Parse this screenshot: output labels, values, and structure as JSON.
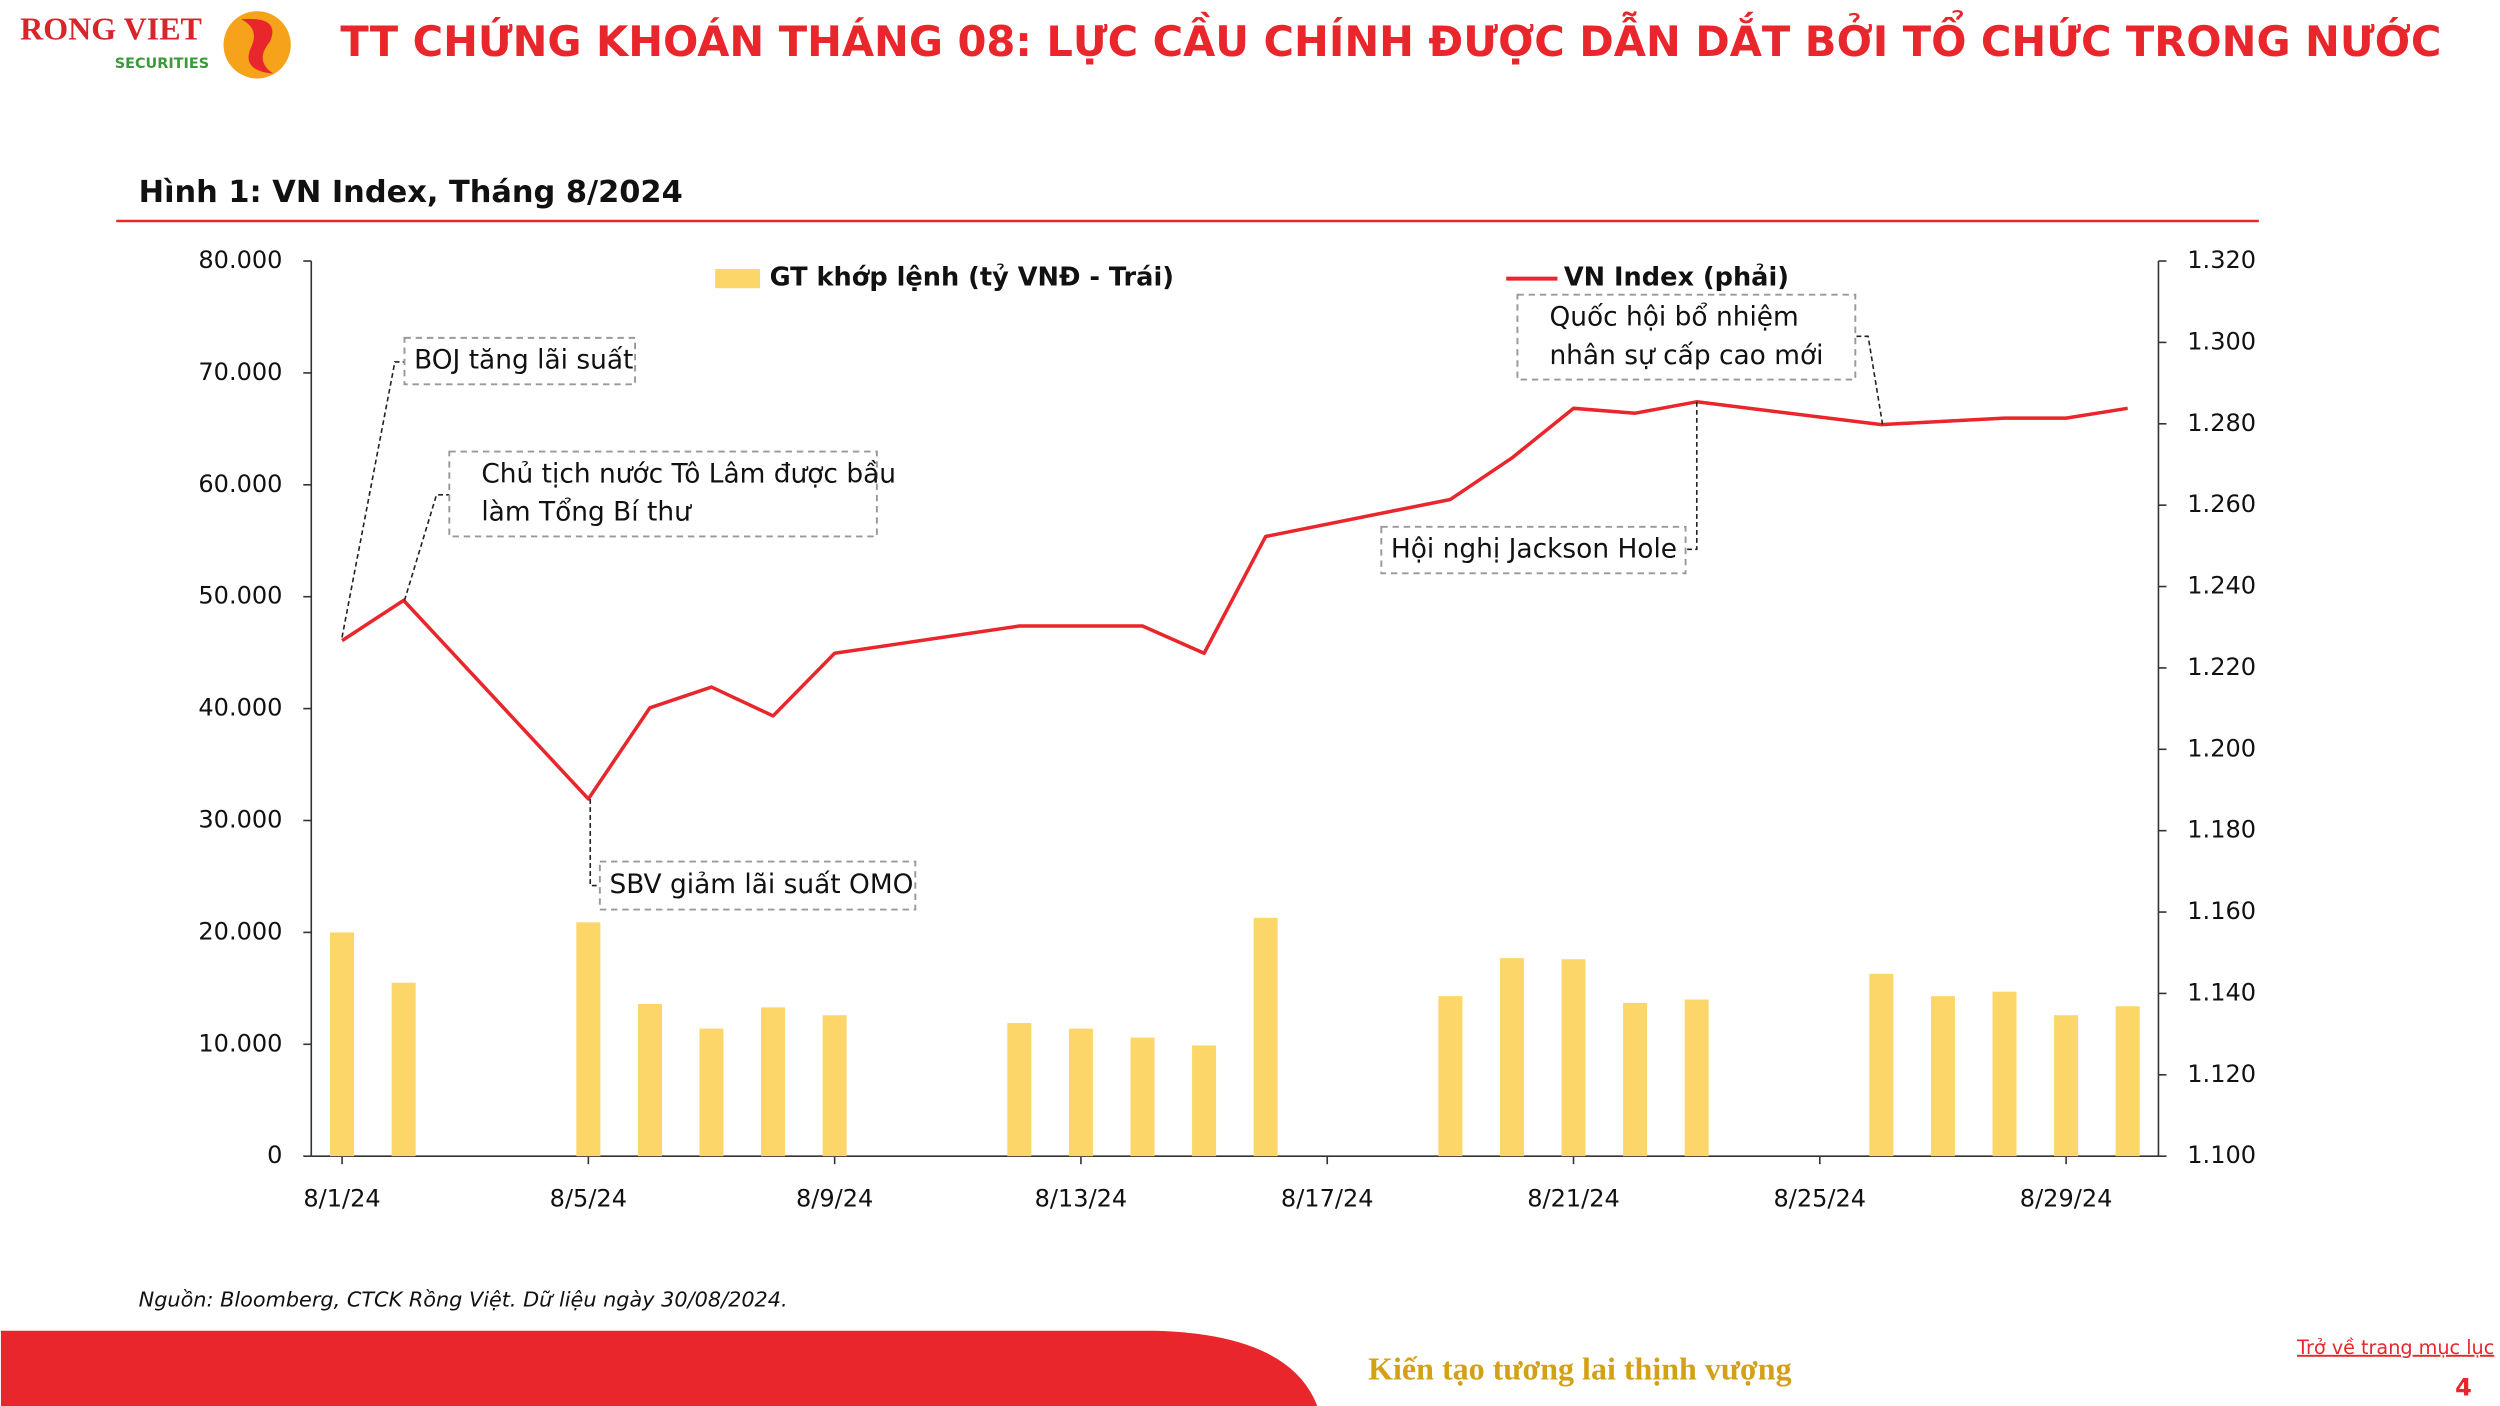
{
  "header": {
    "logo_name": "RONG VIET",
    "logo_sub": "SECURITIES",
    "title": "TT CHỨNG KHOÁN THÁNG 08: LỰC CẦU CHÍNH ĐƯỢC DẪN DẮT BỞI TỔ CHỨC TRONG NƯỚC"
  },
  "chart_data": {
    "type": "bar",
    "title": "Hình 1: VN Index, Tháng 8/2024",
    "categories": [
      "8/1/24",
      null,
      null,
      null,
      "8/5/24",
      null,
      null,
      null,
      "8/9/24",
      null,
      null,
      null,
      "8/13/24",
      null,
      null,
      null,
      "8/17/24",
      null,
      null,
      null,
      "8/21/24",
      null,
      null,
      null,
      "8/25/24",
      null,
      null,
      null,
      "8/29/24",
      null
    ],
    "series": [
      {
        "name": "GT khớp lệnh (tỷ VNĐ - Trái)",
        "type": "bar",
        "color": "#fcd669",
        "values": [
          20000,
          15500,
          null,
          null,
          20900,
          13600,
          11400,
          13300,
          12600,
          null,
          null,
          11900,
          11400,
          10600,
          9900,
          21300,
          null,
          null,
          14300,
          17700,
          17600,
          13700,
          14000,
          null,
          null,
          16300,
          14300,
          14700,
          12600,
          13400
        ]
      },
      {
        "name": "VN Index (phải)",
        "type": "line",
        "axis": "y2",
        "color": "#e8262b",
        "values": [
          1226.7,
          1236.6,
          null,
          null,
          1187.8,
          1210.2,
          1215.3,
          1208.2,
          1223.6,
          null,
          null,
          1230.3,
          1230.3,
          1230.3,
          1223.6,
          1252.3,
          null,
          null,
          1261.4,
          1271.6,
          1283.8,
          1282.6,
          1285.4,
          null,
          null,
          1279.8,
          1280.6,
          1281.4,
          1281.4,
          1283.8
        ]
      }
    ],
    "ylim": [
      0,
      80000
    ],
    "yticks": [
      0,
      {
        "value": 10000,
        "label": "10.000"
      },
      {
        "value": 20000,
        "label": "20.000"
      },
      {
        "value": 30000,
        "label": "30.000"
      },
      {
        "value": 40000,
        "label": "40.000"
      },
      {
        "value": 50000,
        "label": "50.000"
      },
      {
        "value": 60000,
        "label": "60.000"
      },
      {
        "value": 70000,
        "label": "70.000"
      },
      {
        "value": 80000,
        "label": "80.000"
      }
    ],
    "y2lim": [
      1100,
      1320
    ],
    "y2ticks": [
      {
        "value": 1100,
        "label": "1.100"
      },
      {
        "value": 1120,
        "label": "1.120"
      },
      {
        "value": 1140,
        "label": "1.140"
      },
      {
        "value": 1160,
        "label": "1.160"
      },
      {
        "value": 1180,
        "label": "1.180"
      },
      {
        "value": 1200,
        "label": "1.200"
      },
      {
        "value": 1220,
        "label": "1.220"
      },
      {
        "value": 1240,
        "label": "1.240"
      },
      {
        "value": 1260,
        "label": "1.260"
      },
      {
        "value": 1280,
        "label": "1.280"
      },
      {
        "value": 1300,
        "label": "1.300"
      },
      {
        "value": 1320,
        "label": "1.320"
      }
    ],
    "annotations": [
      {
        "lines": [
          "BOJ tăng lãi suất"
        ]
      },
      {
        "lines": [
          "Chủ tịch nước Tô Lâm được bầu",
          "làm Tổng Bí thư"
        ]
      },
      {
        "lines": [
          "SBV giảm lãi suất OMO"
        ]
      },
      {
        "lines": [
          "Hội nghị Jackson Hole"
        ]
      },
      {
        "lines": [
          "Quốc hội bổ nhiệm",
          "nhân sự cấp cao mới"
        ]
      }
    ],
    "source": "Nguồn: Bloomberg, CTCK Rồng Việt. Dữ liệu ngày 30/08/2024."
  },
  "footer": {
    "slogan": "Kiến tạo tương lai thịnh vượng",
    "link": "Trở về trang mục lục",
    "page": "4"
  }
}
